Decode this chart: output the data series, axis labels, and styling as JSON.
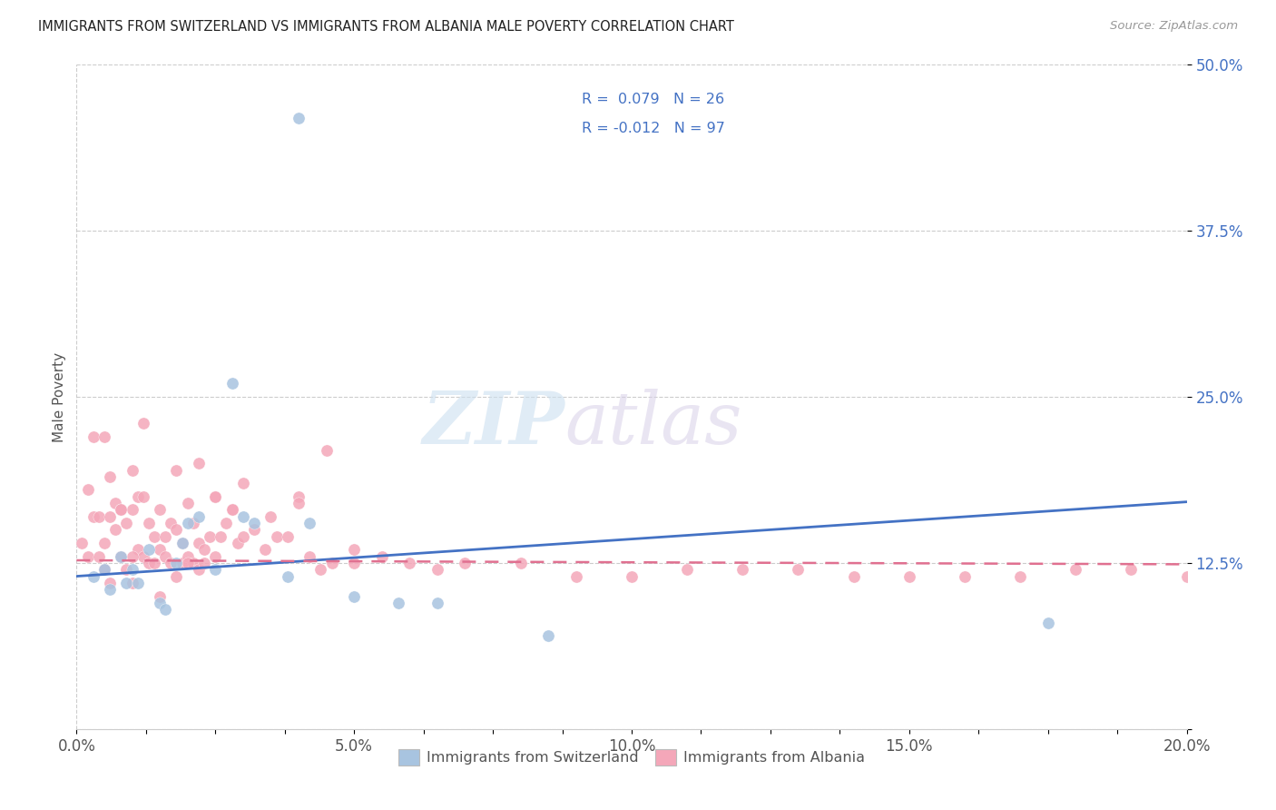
{
  "title": "IMMIGRANTS FROM SWITZERLAND VS IMMIGRANTS FROM ALBANIA MALE POVERTY CORRELATION CHART",
  "source": "Source: ZipAtlas.com",
  "ylabel": "Male Poverty",
  "xlim": [
    0.0,
    0.2
  ],
  "ylim": [
    0.0,
    0.5
  ],
  "ytick_positions": [
    0.0,
    0.125,
    0.25,
    0.375,
    0.5
  ],
  "ytick_labels": [
    "",
    "12.5%",
    "25.0%",
    "37.5%",
    "50.0%"
  ],
  "color_swiss": "#a8c4e0",
  "color_albania": "#f4a7b9",
  "trendline_swiss_color": "#4472c4",
  "trendline_albania_color": "#e07090",
  "background_color": "#ffffff",
  "swiss_x": [
    0.003,
    0.005,
    0.006,
    0.008,
    0.009,
    0.01,
    0.011,
    0.013,
    0.015,
    0.016,
    0.018,
    0.019,
    0.02,
    0.022,
    0.025,
    0.028,
    0.03,
    0.032,
    0.038,
    0.042,
    0.05,
    0.058,
    0.065,
    0.085,
    0.175,
    0.04
  ],
  "swiss_y": [
    0.115,
    0.12,
    0.105,
    0.13,
    0.11,
    0.12,
    0.11,
    0.135,
    0.095,
    0.09,
    0.125,
    0.14,
    0.155,
    0.16,
    0.12,
    0.26,
    0.16,
    0.155,
    0.115,
    0.155,
    0.1,
    0.095,
    0.095,
    0.07,
    0.08,
    0.46
  ],
  "albania_x": [
    0.001,
    0.002,
    0.002,
    0.003,
    0.003,
    0.004,
    0.004,
    0.005,
    0.005,
    0.005,
    0.006,
    0.006,
    0.006,
    0.007,
    0.007,
    0.008,
    0.008,
    0.009,
    0.009,
    0.01,
    0.01,
    0.01,
    0.011,
    0.011,
    0.012,
    0.012,
    0.013,
    0.013,
    0.014,
    0.014,
    0.015,
    0.015,
    0.016,
    0.016,
    0.017,
    0.017,
    0.018,
    0.018,
    0.019,
    0.019,
    0.02,
    0.02,
    0.021,
    0.021,
    0.022,
    0.022,
    0.023,
    0.023,
    0.024,
    0.025,
    0.025,
    0.026,
    0.027,
    0.028,
    0.029,
    0.03,
    0.032,
    0.034,
    0.036,
    0.038,
    0.04,
    0.042,
    0.044,
    0.046,
    0.05,
    0.055,
    0.06,
    0.065,
    0.07,
    0.08,
    0.09,
    0.1,
    0.11,
    0.12,
    0.13,
    0.14,
    0.15,
    0.16,
    0.17,
    0.18,
    0.19,
    0.2,
    0.005,
    0.008,
    0.01,
    0.015,
    0.02,
    0.025,
    0.03,
    0.035,
    0.04,
    0.045,
    0.05,
    0.012,
    0.018,
    0.022,
    0.028
  ],
  "albania_y": [
    0.14,
    0.18,
    0.13,
    0.22,
    0.16,
    0.16,
    0.13,
    0.22,
    0.14,
    0.12,
    0.19,
    0.16,
    0.11,
    0.17,
    0.15,
    0.165,
    0.13,
    0.155,
    0.12,
    0.195,
    0.165,
    0.11,
    0.175,
    0.135,
    0.175,
    0.13,
    0.155,
    0.125,
    0.145,
    0.125,
    0.165,
    0.135,
    0.145,
    0.13,
    0.155,
    0.125,
    0.15,
    0.115,
    0.14,
    0.125,
    0.17,
    0.13,
    0.155,
    0.125,
    0.14,
    0.12,
    0.135,
    0.125,
    0.145,
    0.175,
    0.13,
    0.145,
    0.155,
    0.165,
    0.14,
    0.145,
    0.15,
    0.135,
    0.145,
    0.145,
    0.175,
    0.13,
    0.12,
    0.125,
    0.135,
    0.13,
    0.125,
    0.12,
    0.125,
    0.125,
    0.115,
    0.115,
    0.12,
    0.12,
    0.12,
    0.115,
    0.115,
    0.115,
    0.115,
    0.12,
    0.12,
    0.115,
    0.12,
    0.165,
    0.13,
    0.1,
    0.125,
    0.175,
    0.185,
    0.16,
    0.17,
    0.21,
    0.125,
    0.23,
    0.195,
    0.2,
    0.165
  ]
}
